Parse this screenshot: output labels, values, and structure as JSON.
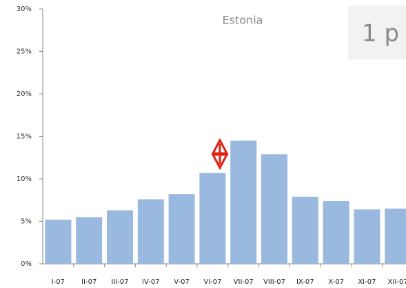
{
  "chart_data": {
    "type": "bar",
    "title": "Estonia",
    "annotation": "1 p",
    "categories": [
      "I-07",
      "II-07",
      "III-07",
      "IV-07",
      "V-07",
      "VI-07",
      "VII-07",
      "VIII-07",
      "IX-07",
      "X-07",
      "XI-07",
      "XII-07"
    ],
    "values": [
      5.2,
      5.5,
      6.3,
      7.6,
      8.2,
      10.7,
      14.5,
      12.9,
      7.9,
      7.4,
      6.4,
      6.5
    ],
    "color": "#9ab9de",
    "ylim": [
      0,
      30
    ],
    "yticks": [
      {
        "value": 0,
        "label": "0%"
      },
      {
        "value": 5,
        "label": "5%"
      },
      {
        "value": 10,
        "label": "10%"
      },
      {
        "value": 15,
        "label": "15%"
      },
      {
        "value": 20,
        "label": "20%"
      },
      {
        "value": 25,
        "label": "25%"
      },
      {
        "value": 30,
        "label": "30%"
      }
    ]
  }
}
